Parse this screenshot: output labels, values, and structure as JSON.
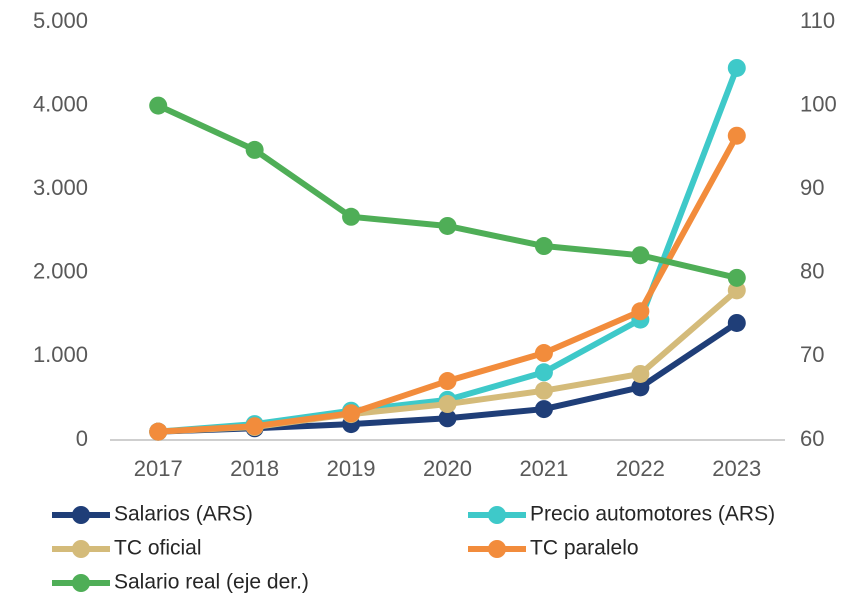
{
  "chart_data": {
    "type": "line",
    "categories": [
      "2017",
      "2018",
      "2019",
      "2020",
      "2021",
      "2022",
      "2023"
    ],
    "ylim": [
      0,
      5000
    ],
    "yticks": [
      0,
      {
        "value": 1000,
        "label": "1.000"
      },
      {
        "value": 2000,
        "label": "2.000"
      },
      {
        "value": 3000,
        "label": "3.000"
      },
      {
        "value": 4000,
        "label": "4.000"
      },
      {
        "value": 5000,
        "label": "5.000"
      }
    ],
    "y2lim": [
      60,
      110
    ],
    "y2ticks": [
      60,
      70,
      80,
      90,
      100,
      110
    ],
    "grid": false,
    "series": [
      {
        "name": "Salarios (ARS)",
        "color": "#1f3e78",
        "values": [
          100,
          140,
          190,
          260,
          370,
          630,
          1400
        ]
      },
      {
        "name": "Precio automotores (ARS)",
        "color": "#3ec9c9",
        "values": [
          100,
          190,
          350,
          480,
          810,
          1440,
          4450
        ]
      },
      {
        "name": "TC oficial",
        "color": "#d4bb7a",
        "values": [
          100,
          155,
          310,
          430,
          590,
          790,
          1790
        ]
      },
      {
        "name": "TC paralelo",
        "color": "#f28c3c",
        "values": [
          100,
          165,
          320,
          705,
          1040,
          1540,
          3640
        ]
      },
      {
        "name": "Salario real (eje der.)",
        "color": "#4fae57",
        "axis": "y2",
        "values": [
          100,
          94.7,
          86.7,
          85.6,
          83.2,
          82.1,
          79.4
        ]
      }
    ]
  }
}
